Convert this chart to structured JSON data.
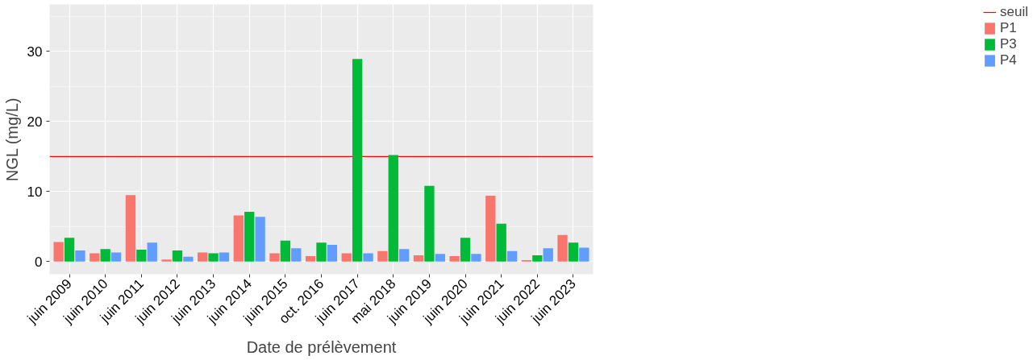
{
  "chart_data": {
    "type": "bar",
    "xlabel": "Date de prélèvement",
    "ylabel": "NGL (mg/L)",
    "categories": [
      "juin 2009",
      "juin 2010",
      "juin 2011",
      "juin 2012",
      "juin 2013",
      "juin 2014",
      "juin 2015",
      "oct. 2016",
      "juin 2017",
      "mai 2018",
      "juin 2019",
      "juin 2020",
      "juin 2021",
      "juin 2022",
      "juin 2023"
    ],
    "series": [
      {
        "name": "P1",
        "color": "#f8766d",
        "values": [
          2.8,
          1.2,
          9.5,
          0.3,
          1.3,
          6.6,
          1.2,
          0.8,
          1.2,
          1.5,
          0.9,
          0.8,
          9.4,
          0.2,
          3.8
        ]
      },
      {
        "name": "P3",
        "color": "#00ba38",
        "values": [
          3.4,
          1.8,
          1.7,
          1.6,
          1.2,
          7.1,
          3.0,
          2.7,
          28.9,
          15.2,
          10.8,
          3.4,
          5.4,
          0.9,
          2.7
        ]
      },
      {
        "name": "P4",
        "color": "#619cff",
        "values": [
          1.6,
          1.3,
          2.7,
          0.7,
          1.3,
          6.4,
          1.9,
          2.4,
          1.2,
          1.8,
          1.1,
          1.1,
          1.5,
          1.9,
          2.0
        ]
      }
    ],
    "ylim": [
      -1.8,
      36.7
    ],
    "yticks": [
      0,
      10,
      20,
      30
    ],
    "grid": true,
    "legend": "right",
    "ref_lines": [
      {
        "axis": "y",
        "value": 15,
        "label": "seuil",
        "color": "#ff0000"
      }
    ]
  }
}
